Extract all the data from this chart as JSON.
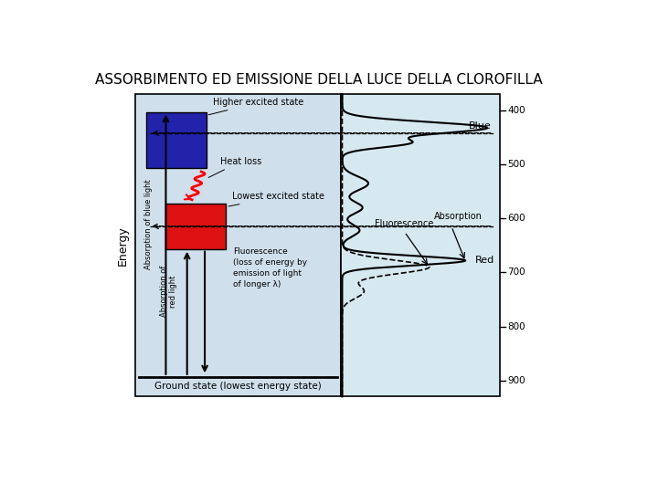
{
  "title": "ASSORBIMENTO ED EMISSIONE DELLA LUCE DELLA CLOROFILLA",
  "title_fontsize": 11,
  "background_color": "#ffffff",
  "diagram_bg": "#cfe0ec",
  "right_panel_bg": "#d6e8f0",
  "blue_box_color": "#2222aa",
  "red_box_color": "#dd1111",
  "wavelength_ticks": [
    400,
    500,
    600,
    700,
    800,
    900
  ],
  "wl_min": 370,
  "wl_max": 930,
  "labels": {
    "title": "ASSORBIMENTO ED EMISSIONE DELLA LUCE DELLA CLOROFILLA",
    "energy": "Energy",
    "abs_blue": "Absorption of blue light",
    "abs_red": "Absorption of\nred light",
    "ground": "Ground state (lowest energy state)",
    "higher": "Higher excited state",
    "lowest": "Lowest excited state",
    "heat_loss": "Heat loss",
    "fluorescence_label": "Fluorescence\n(loss of energy by\nemission of light\nof longer λ)",
    "blue_label": "Blue",
    "red_label": "Red",
    "fluor_label": "Fluorescence",
    "absorption_label": "Absorption"
  }
}
